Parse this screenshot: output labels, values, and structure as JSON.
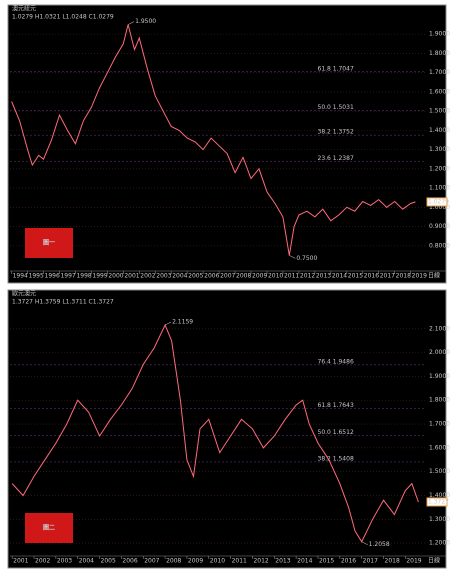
{
  "chart_data": [
    {
      "type": "line",
      "title": "澳元紐元",
      "info": "1.0279 H1.0321 L1.0248 C1.0279",
      "badge": "圖一",
      "period": "日線",
      "color": "#ff6b7a",
      "x": [
        1994.0,
        1994.5,
        1995.0,
        1995.3,
        1995.7,
        1996.0,
        1996.5,
        1997.0,
        1997.5,
        1998.0,
        1998.5,
        1999.0,
        1999.5,
        2000.0,
        2000.5,
        2001.0,
        2001.3,
        2001.7,
        2002.0,
        2002.5,
        2003.0,
        2003.5,
        2004.0,
        2004.5,
        2005.0,
        2005.5,
        2006.0,
        2006.5,
        2007.0,
        2007.5,
        2008.0,
        2008.5,
        2009.0,
        2009.5,
        2010.0,
        2010.5,
        2011.0,
        2011.4,
        2011.7,
        2012.0,
        2012.5,
        2013.0,
        2013.5,
        2014.0,
        2014.5,
        2015.0,
        2015.5,
        2016.0,
        2016.5,
        2017.0,
        2017.5,
        2018.0,
        2018.5,
        2019.0,
        2019.3
      ],
      "values": [
        1.55,
        1.45,
        1.3,
        1.22,
        1.27,
        1.25,
        1.35,
        1.48,
        1.4,
        1.33,
        1.45,
        1.52,
        1.62,
        1.7,
        1.78,
        1.85,
        1.95,
        1.82,
        1.88,
        1.72,
        1.58,
        1.5,
        1.42,
        1.4,
        1.36,
        1.34,
        1.3,
        1.36,
        1.32,
        1.28,
        1.18,
        1.26,
        1.15,
        1.2,
        1.08,
        1.02,
        0.95,
        0.75,
        0.9,
        0.96,
        0.98,
        0.95,
        0.99,
        0.93,
        0.96,
        1.0,
        0.98,
        1.03,
        1.01,
        1.04,
        1.0,
        1.03,
        0.99,
        1.02,
        1.0279
      ],
      "xlim": [
        1993.9,
        2019.9
      ],
      "xticks": [
        1994,
        1995,
        1996,
        1997,
        1998,
        1999,
        2000,
        2001,
        2002,
        2003,
        2004,
        2005,
        2006,
        2007,
        2008,
        2009,
        2010,
        2011,
        2012,
        2013,
        2014,
        2015,
        2016,
        2017,
        2018,
        2019
      ],
      "ylim": [
        0.7,
        2.0
      ],
      "yticks": [
        {
          "value": 0.8,
          "label": "0.8000"
        },
        {
          "value": 0.9,
          "label": "0.9000"
        },
        {
          "value": 1.0,
          "label": "1.0000"
        },
        {
          "value": 1.1,
          "label": "1.1000"
        },
        {
          "value": 1.2,
          "label": "1.2000"
        },
        {
          "value": 1.3,
          "label": "1.3000"
        },
        {
          "value": 1.4,
          "label": "1.4000"
        },
        {
          "value": 1.5,
          "label": "1.5000"
        },
        {
          "value": 1.6,
          "label": "1.6000"
        },
        {
          "value": 1.7,
          "label": "1.7000"
        },
        {
          "value": 1.8,
          "label": "1.8000"
        },
        {
          "value": 1.9,
          "label": "1.9000"
        }
      ],
      "levels": [
        {
          "value": 1.7047,
          "label": "61.8 1.7047"
        },
        {
          "value": 1.5031,
          "label": "50.0 1.5031"
        },
        {
          "value": 1.3752,
          "label": "38.2 1.3752"
        },
        {
          "value": 1.2387,
          "label": "23.6 1.2387"
        }
      ],
      "annotations": [
        {
          "x": 2001.3,
          "value": 1.95,
          "label": "1.9500"
        },
        {
          "x": 2011.4,
          "value": 0.75,
          "label": "0.7500"
        }
      ],
      "last": {
        "value": 1.0279,
        "label": "1.0279"
      },
      "grid": true
    },
    {
      "type": "line",
      "title": "歐元澳元",
      "info": "1.3727 H1.3759 L1.3711 C1.3727",
      "badge": "圖二",
      "period": "日線",
      "color": "#ff6b7a",
      "x": [
        2001.0,
        2001.5,
        2002.0,
        2002.5,
        2003.0,
        2003.5,
        2004.0,
        2004.5,
        2005.0,
        2005.5,
        2006.0,
        2006.5,
        2007.0,
        2007.5,
        2008.0,
        2008.3,
        2008.7,
        2009.0,
        2009.3,
        2009.6,
        2010.0,
        2010.5,
        2011.0,
        2011.5,
        2012.0,
        2012.5,
        2013.0,
        2013.5,
        2014.0,
        2014.3,
        2014.6,
        2015.0,
        2015.5,
        2016.0,
        2016.4,
        2016.7,
        2017.0,
        2017.5,
        2018.0,
        2018.5,
        2019.0,
        2019.3,
        2019.6
      ],
      "values": [
        1.45,
        1.4,
        1.48,
        1.55,
        1.62,
        1.7,
        1.8,
        1.75,
        1.65,
        1.72,
        1.78,
        1.85,
        1.95,
        2.02,
        2.1159,
        2.05,
        1.8,
        1.55,
        1.48,
        1.68,
        1.72,
        1.58,
        1.65,
        1.72,
        1.68,
        1.6,
        1.65,
        1.72,
        1.78,
        1.8,
        1.7,
        1.62,
        1.55,
        1.45,
        1.35,
        1.25,
        1.2058,
        1.3,
        1.38,
        1.32,
        1.42,
        1.45,
        1.3727
      ],
      "xlim": [
        2000.9,
        2019.9
      ],
      "xticks": [
        2001,
        2002,
        2003,
        2004,
        2005,
        2006,
        2007,
        2008,
        2009,
        2010,
        2011,
        2012,
        2013,
        2014,
        2015,
        2016,
        2017,
        2018,
        2019
      ],
      "ylim": [
        1.15,
        2.2
      ],
      "yticks": [
        {
          "value": 1.2,
          "label": "1.2000"
        },
        {
          "value": 1.3,
          "label": "1.3000"
        },
        {
          "value": 1.4,
          "label": "1.4000"
        },
        {
          "value": 1.5,
          "label": "1.5000"
        },
        {
          "value": 1.6,
          "label": "1.6000"
        },
        {
          "value": 1.7,
          "label": "1.7000"
        },
        {
          "value": 1.8,
          "label": "1.8000"
        },
        {
          "value": 1.9,
          "label": "1.9000"
        },
        {
          "value": 2.0,
          "label": "2.0000"
        },
        {
          "value": 2.1,
          "label": "2.1000"
        }
      ],
      "levels": [
        {
          "value": 1.9486,
          "label": "76.4 1.9486"
        },
        {
          "value": 1.7643,
          "label": "61.8 1.7643"
        },
        {
          "value": 1.6512,
          "label": "50.0 1.6512"
        },
        {
          "value": 1.5408,
          "label": "38.2 1.5408"
        }
      ],
      "annotations": [
        {
          "x": 2008.0,
          "value": 2.1159,
          "label": "2.1159"
        },
        {
          "x": 2017.0,
          "value": 1.2058,
          "label": "1.2058"
        }
      ],
      "last": {
        "value": 1.3727,
        "label": "1.3727"
      },
      "grid": true
    }
  ]
}
